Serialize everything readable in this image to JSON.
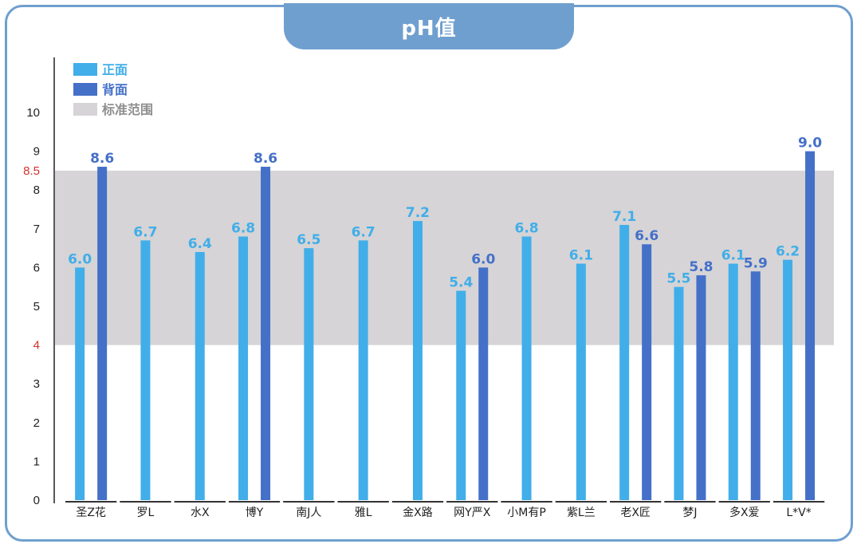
{
  "title": "pH值",
  "colors": {
    "front": "#41aee9",
    "back": "#4470c8",
    "band": "#d6d4d6",
    "band_legend_text": "#8e8e8e",
    "ref_tick": "#d0312d",
    "frame": "#6f9fcf"
  },
  "legend": {
    "front": "正面",
    "back": "背面",
    "band": "标准范围"
  },
  "chart_data": {
    "type": "bar",
    "title": "pH值",
    "xlabel": "",
    "ylabel": "",
    "ylim": [
      0,
      11
    ],
    "yticks": [
      0,
      1,
      2,
      3,
      4,
      5,
      6,
      7,
      8,
      8.5,
      9,
      10
    ],
    "ref_ticks": [
      4,
      8.5
    ],
    "band": [
      4,
      8.5
    ],
    "grid": false,
    "legend_position": "top-left",
    "categories": [
      "圣Z花",
      "罗L",
      "水X",
      "博Y",
      "南J人",
      "雅L",
      "金X路",
      "网Y严X",
      "小M有P",
      "紫L兰",
      "老X匠",
      "梦J",
      "多X爱",
      "L*V*"
    ],
    "series": [
      {
        "name": "正面",
        "values": [
          6.0,
          6.7,
          6.4,
          6.8,
          6.5,
          6.7,
          7.2,
          5.4,
          6.8,
          6.1,
          7.1,
          5.5,
          6.1,
          6.2
        ]
      },
      {
        "name": "背面",
        "values": [
          8.6,
          null,
          null,
          8.6,
          null,
          null,
          null,
          6.0,
          null,
          null,
          6.6,
          5.8,
          5.9,
          9.0
        ]
      }
    ],
    "value_labels": {
      "front": [
        "6.0",
        "6.7",
        "6.4",
        "6.8",
        "6.5",
        "6.7",
        "7.2",
        "5.4",
        "6.8",
        "6.1",
        "7.1",
        "5.5",
        "6.1",
        "6.2"
      ],
      "back": [
        "8.6",
        null,
        null,
        "8.6",
        null,
        null,
        null,
        "6.0",
        null,
        null,
        "6.6",
        "5.8",
        "5.9",
        "9.0"
      ]
    }
  }
}
